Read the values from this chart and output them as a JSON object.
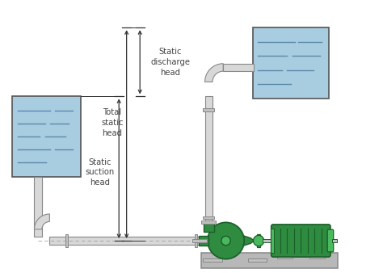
{
  "bg_color": "#ffffff",
  "water_color": "#a8cce0",
  "water_line_color": "#5a8aaa",
  "pipe_color": "#d8d8d8",
  "pipe_edge": "#888888",
  "pump_green": "#2e8b40",
  "pump_dark": "#1a5e28",
  "pump_light": "#4ab85c",
  "motor_green": "#2e8b40",
  "base_color": "#b8b8b8",
  "base_edge": "#888888",
  "text_color": "#444444",
  "arrow_color": "#333333",
  "fitting_color": "#c0c0c0",
  "tank_edge": "#555555",
  "label_total": "Total\nstatic\nhead",
  "label_discharge": "Static\ndischarge\nhead",
  "label_suction": "Static\nsuction\nhead",
  "figsize": [
    4.74,
    3.38
  ],
  "dpi": 100
}
